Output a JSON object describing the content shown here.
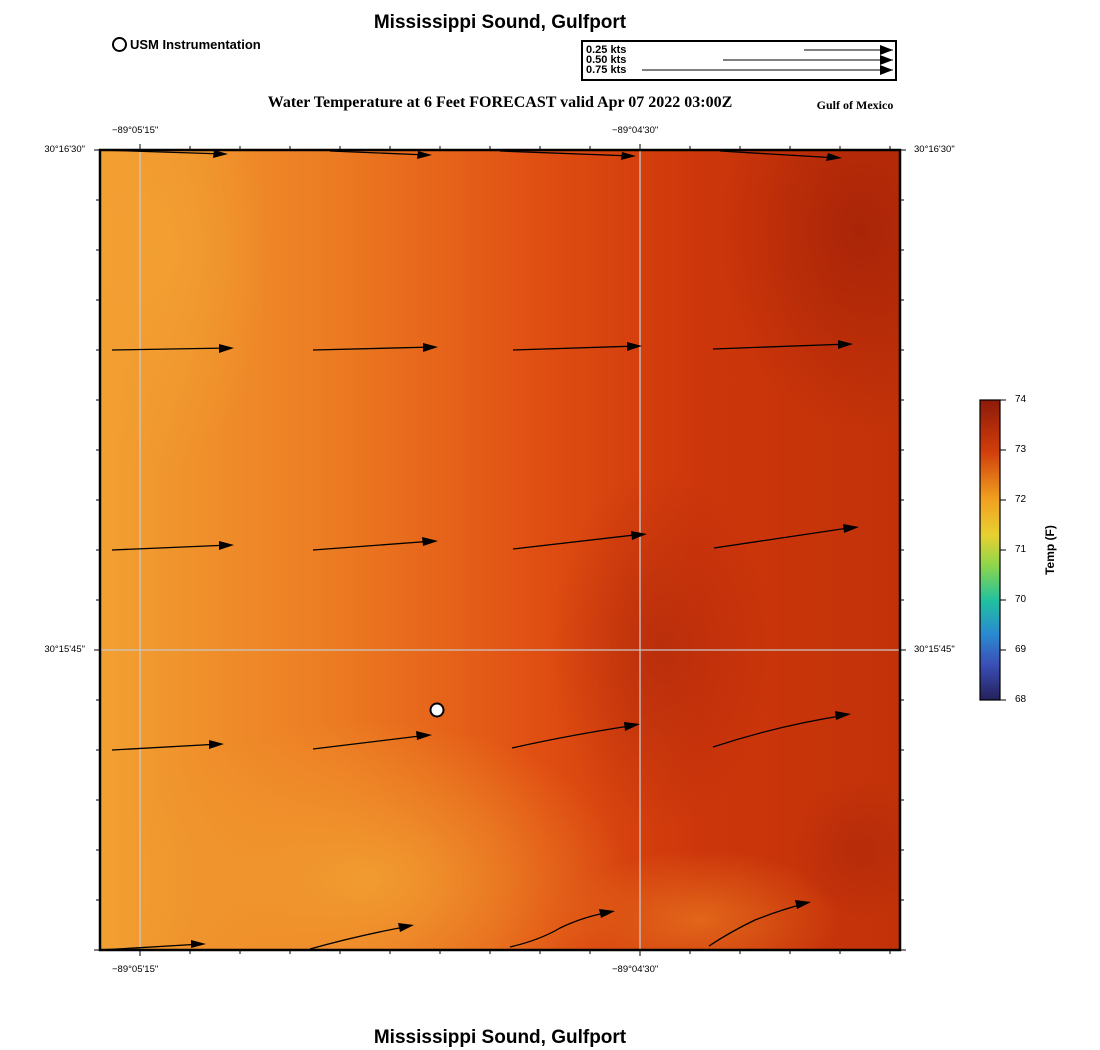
{
  "title_top": "Mississippi Sound, Gulfport",
  "title_bottom": "Mississippi Sound, Gulfport",
  "legend": {
    "instrument_label": "USM Instrumentation"
  },
  "vector_scale": {
    "labels": [
      "0.25 kts",
      "0.50 kts",
      "0.75 kts"
    ]
  },
  "subtitle": "Water Temperature at 6 Feet FORECAST valid Apr 07 2022 03:00Z",
  "region_label": "Gulf of Mexico",
  "axes": {
    "x_ticks": [
      "−89°05'15\"",
      "−89°04'30\""
    ],
    "y_ticks": [
      "30°16'30\"",
      "30°15'45\""
    ]
  },
  "colorbar": {
    "title": "Temp (F)",
    "ticks": [
      "74",
      "73",
      "72",
      "71",
      "70",
      "69",
      "68"
    ],
    "colors": [
      "#8c1a09",
      "#d03d0b",
      "#f0a020",
      "#e8d030",
      "#8ed64a",
      "#20c0a0",
      "#2a8ad0",
      "#3a50b8",
      "#25205a"
    ]
  }
}
